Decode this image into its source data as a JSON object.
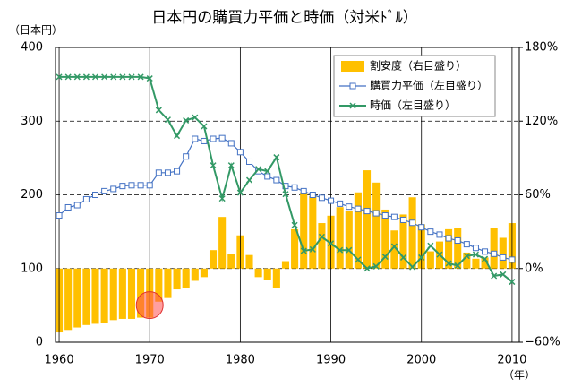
{
  "chart_data": {
    "type": "combo",
    "title": "日本円の購買力平価と時価（対米ﾄﾞﾙ）",
    "y_label": "（日本円）",
    "x_label": "（年）",
    "x": [
      1960,
      1961,
      1962,
      1963,
      1964,
      1965,
      1966,
      1967,
      1968,
      1969,
      1970,
      1971,
      1972,
      1973,
      1974,
      1975,
      1976,
      1977,
      1978,
      1979,
      1980,
      1981,
      1982,
      1983,
      1984,
      1985,
      1986,
      1987,
      1988,
      1989,
      1990,
      1991,
      1992,
      1993,
      1994,
      1995,
      1996,
      1997,
      1998,
      1999,
      2000,
      2001,
      2002,
      2003,
      2004,
      2005,
      2006,
      2007,
      2008,
      2009,
      2010
    ],
    "xlim": [
      1959.6,
      2010.8
    ],
    "xticks": [
      1960,
      1970,
      1980,
      1990,
      2000,
      2010
    ],
    "ylim": [
      0,
      400
    ],
    "yticks": [
      0,
      100,
      200,
      300,
      400
    ],
    "y2lim": [
      -60,
      180
    ],
    "y2ticks": [
      {
        "value": -60,
        "label": "−60%"
      },
      {
        "value": 0,
        "label": "0%"
      },
      {
        "value": 60,
        "label": "60%"
      },
      {
        "value": 120,
        "label": "120%"
      },
      {
        "value": 180,
        "label": "180%"
      }
    ],
    "grid": true,
    "legend": "upper right",
    "series": [
      {
        "name": "割安度（右目盛り）",
        "type": "bar",
        "axis": "y2",
        "color": "#FFC000",
        "values": [
          -52,
          -50,
          -48,
          -46,
          -45,
          -44,
          -42,
          -41,
          -41,
          -40,
          -40,
          -27,
          -24,
          -17,
          -16,
          -10,
          -7,
          15,
          42,
          12,
          27,
          11,
          -7,
          -9,
          -16,
          6,
          32,
          62,
          59,
          37,
          43,
          50,
          47,
          62,
          80,
          70,
          48,
          31,
          44,
          58,
          36,
          14,
          22,
          32,
          33,
          13,
          8,
          9,
          33,
          25,
          37
        ]
      },
      {
        "name": "購買力平価（左目盛り）",
        "type": "line",
        "marker": "square",
        "color": "#4472C4",
        "values": [
          172,
          183,
          186,
          194,
          200,
          205,
          208,
          212,
          213,
          213,
          213,
          230,
          230,
          232,
          252,
          276,
          273,
          276,
          277,
          270,
          258,
          245,
          232,
          225,
          220,
          212,
          210,
          205,
          200,
          196,
          192,
          188,
          184,
          181,
          178,
          175,
          172,
          170,
          166,
          162,
          156,
          150,
          146,
          141,
          138,
          133,
          128,
          123,
          120,
          115,
          112
        ]
      },
      {
        "name": "時価（左目盛り）",
        "type": "line",
        "marker": "x",
        "color": "#339966",
        "values": [
          360,
          360,
          360,
          360,
          360,
          360,
          360,
          360,
          360,
          360,
          358,
          315,
          302,
          280,
          301,
          305,
          293,
          240,
          195,
          240,
          203,
          220,
          235,
          232,
          251,
          201,
          159,
          124,
          126,
          143,
          134,
          125,
          125,
          112,
          100,
          103,
          116,
          130,
          115,
          102,
          115,
          131,
          119,
          107,
          104,
          117,
          119,
          113,
          90,
          92,
          82
        ]
      }
    ]
  }
}
